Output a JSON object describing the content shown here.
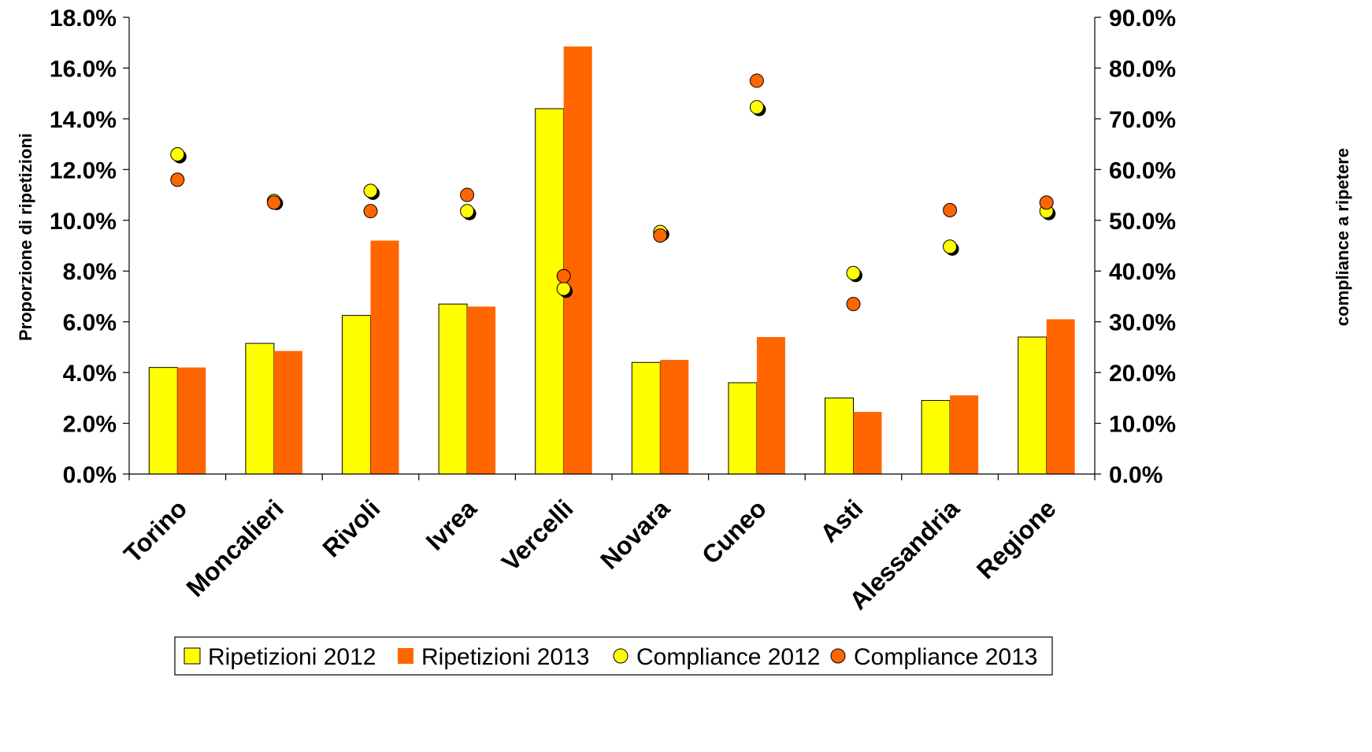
{
  "chart_data": {
    "type": "bar",
    "categories": [
      "Torino",
      "Moncalieri",
      "Rivoli",
      "Ivrea",
      "Vercelli",
      "Novara",
      "Cuneo",
      "Asti",
      "Alessandria",
      "Regione"
    ],
    "bar_series": [
      {
        "name": "Ripetizioni 2012",
        "color": "#ffff00",
        "values": [
          4.2,
          5.15,
          6.25,
          6.7,
          14.4,
          4.4,
          3.6,
          3.0,
          2.9,
          5.4
        ]
      },
      {
        "name": "Ripetizioni 2013",
        "color": "#ff6600",
        "values": [
          4.2,
          4.85,
          9.2,
          6.6,
          16.85,
          4.5,
          5.4,
          2.45,
          3.1,
          6.1
        ]
      }
    ],
    "scatter_series": [
      {
        "name": "Compliance 2012",
        "color": "#ffff00",
        "axis": "right",
        "values": [
          63.0,
          53.8,
          55.8,
          51.8,
          36.5,
          47.7,
          72.3,
          39.6,
          44.8,
          51.8
        ]
      },
      {
        "name": "Compliance 2013",
        "color": "#ff6600",
        "axis": "right",
        "values": [
          58.0,
          53.5,
          51.8,
          55.0,
          39.0,
          47.0,
          77.5,
          33.5,
          52.0,
          53.5
        ]
      }
    ],
    "ylabel_left": "Proporzione di ripetizioni",
    "ylabel_right": "compliance a ripetere",
    "ylim_left": [
      0,
      18
    ],
    "ylim_right": [
      0,
      90
    ],
    "y_ticks_left": [
      "0.0%",
      "2.0%",
      "4.0%",
      "6.0%",
      "8.0%",
      "10.0%",
      "12.0%",
      "14.0%",
      "16.0%",
      "18.0%"
    ],
    "y_ticks_right": [
      "0.0%",
      "10.0%",
      "20.0%",
      "30.0%",
      "40.0%",
      "50.0%",
      "60.0%",
      "70.0%",
      "80.0%",
      "90.0%"
    ],
    "grid": false,
    "legend_position": "bottom"
  }
}
